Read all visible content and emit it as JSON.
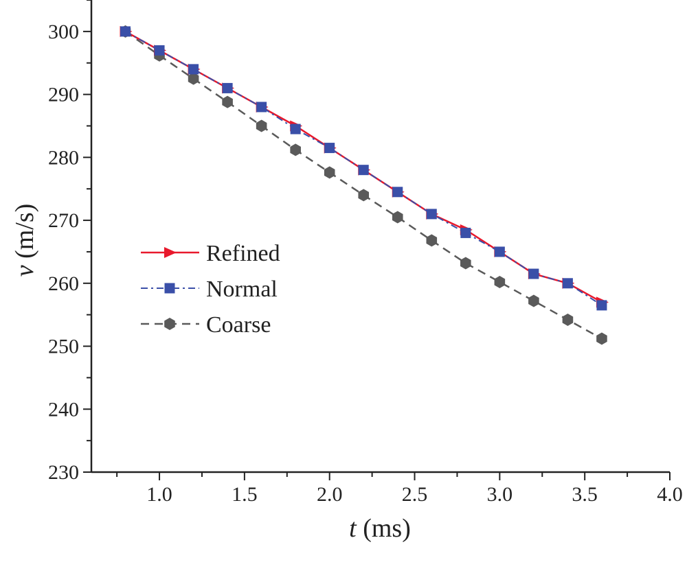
{
  "chart_data": {
    "type": "line",
    "xlabel": {
      "var": "t",
      "unit": " (ms)"
    },
    "ylabel": {
      "var": "v",
      "unit": " (m/s)"
    },
    "xlim": [
      0.6,
      4.0
    ],
    "ylim": [
      230,
      305
    ],
    "xticks": [
      1.0,
      1.5,
      2.0,
      2.5,
      3.0,
      3.5,
      4.0
    ],
    "xtick_labels": [
      "1.0",
      "1.5",
      "2.0",
      "2.5",
      "3.0",
      "3.5",
      "4.0"
    ],
    "yticks": [
      230,
      240,
      250,
      260,
      270,
      280,
      290,
      300
    ],
    "ytick_labels": [
      "230",
      "240",
      "250",
      "260",
      "270",
      "280",
      "290",
      "300"
    ],
    "grid": false,
    "legend_position": "center-left",
    "x": [
      0.8,
      1.0,
      1.2,
      1.4,
      1.6,
      1.8,
      2.0,
      2.2,
      2.4,
      2.6,
      2.8,
      3.0,
      3.2,
      3.4,
      3.6
    ],
    "series": [
      {
        "name": "Refined",
        "color": "#e8192c",
        "marker": "triangle-right",
        "line_style": "solid",
        "values": [
          300.0,
          297.0,
          294.0,
          291.0,
          288.0,
          285.0,
          281.5,
          278.0,
          274.5,
          271.0,
          268.5,
          265.0,
          261.5,
          260.0,
          257.0
        ]
      },
      {
        "name": "Normal",
        "color": "#3a4fa8",
        "marker": "square",
        "line_style": "dash-dot",
        "values": [
          300.0,
          297.0,
          294.0,
          291.0,
          288.0,
          284.5,
          281.5,
          278.0,
          274.5,
          271.0,
          268.0,
          265.0,
          261.5,
          260.0,
          256.5
        ]
      },
      {
        "name": "Coarse",
        "color": "#5a5a5a",
        "marker": "hexagon",
        "line_style": "dashed",
        "values": [
          300.0,
          296.2,
          292.5,
          288.8,
          285.0,
          281.2,
          277.6,
          274.0,
          270.5,
          266.8,
          263.2,
          260.2,
          257.2,
          254.2,
          251.2
        ]
      }
    ]
  }
}
